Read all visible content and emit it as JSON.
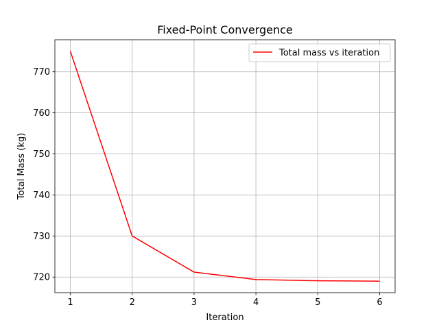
{
  "chart_data": {
    "type": "line",
    "title": "Fixed-Point Convergence",
    "xlabel": "Iteration",
    "ylabel": "Total Mass (kg)",
    "x": [
      1,
      2,
      3,
      4,
      5,
      6
    ],
    "series": [
      {
        "name": "Total mass vs iteration",
        "color": "#ff0000",
        "values": [
          775.0,
          730.0,
          721.2,
          719.4,
          719.1,
          719.0
        ]
      }
    ],
    "xlim": [
      0.75,
      6.25
    ],
    "ylim": [
      716.2,
      777.8
    ],
    "xticks": [
      1,
      2,
      3,
      4,
      5,
      6
    ],
    "yticks": [
      720,
      730,
      740,
      750,
      760,
      770
    ],
    "grid": true,
    "legend_position": "top-right"
  }
}
